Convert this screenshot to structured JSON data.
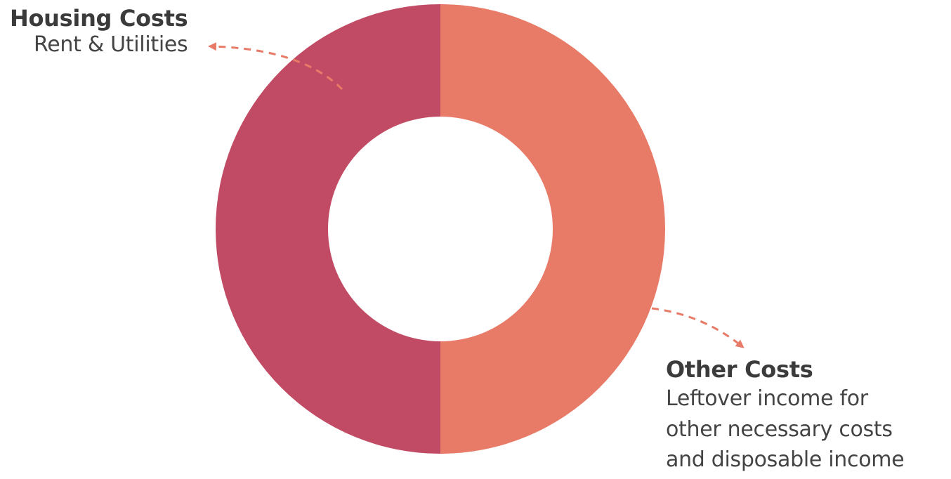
{
  "chart_data": {
    "type": "pie",
    "variant": "donut",
    "slices": [
      {
        "label": "Housing Costs",
        "description": "Rent & Utilities",
        "value": 50,
        "color": "#c14b64"
      },
      {
        "label": "Other Costs",
        "description": "Leftover income for\nother necessary costs\nand disposable income",
        "value": 50,
        "color": "#e87b68"
      }
    ],
    "legend": "none",
    "annotation_arrow_color": "#e87b68"
  }
}
